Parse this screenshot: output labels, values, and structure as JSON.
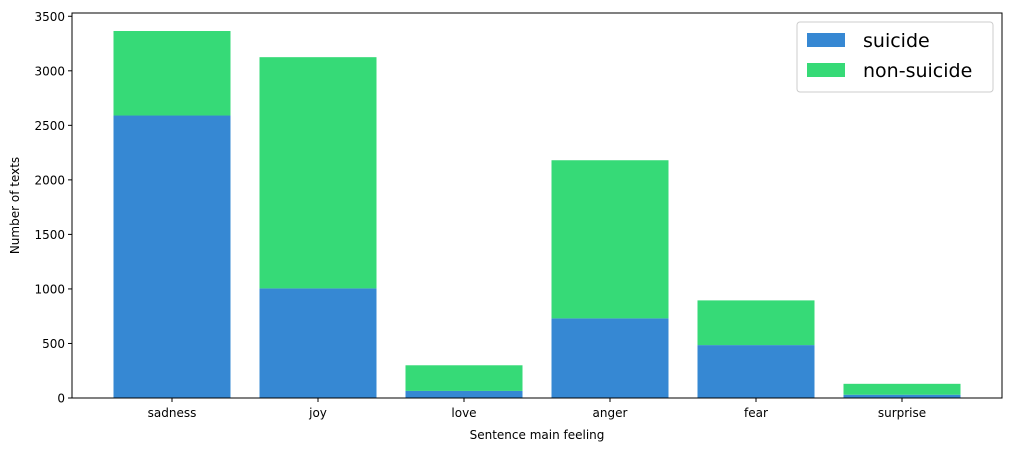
{
  "chart_data": {
    "type": "bar",
    "stacked": true,
    "categories": [
      "sadness",
      "joy",
      "love",
      "anger",
      "fear",
      "surprise"
    ],
    "series": [
      {
        "name": "suicide",
        "color": "#3688d3",
        "values": [
          2590,
          1005,
          65,
          730,
          485,
          30
        ]
      },
      {
        "name": "non-suicide",
        "color": "#36da77",
        "values": [
          775,
          2120,
          235,
          1450,
          410,
          100
        ]
      }
    ],
    "title": "",
    "xlabel": "Sentence main feeling",
    "ylabel": "Number of texts",
    "ylim": [
      0,
      3530
    ],
    "yticks": [
      0,
      500,
      1000,
      1500,
      2000,
      2500,
      3000,
      3500
    ],
    "grid": false,
    "legend_position": "top-right"
  }
}
